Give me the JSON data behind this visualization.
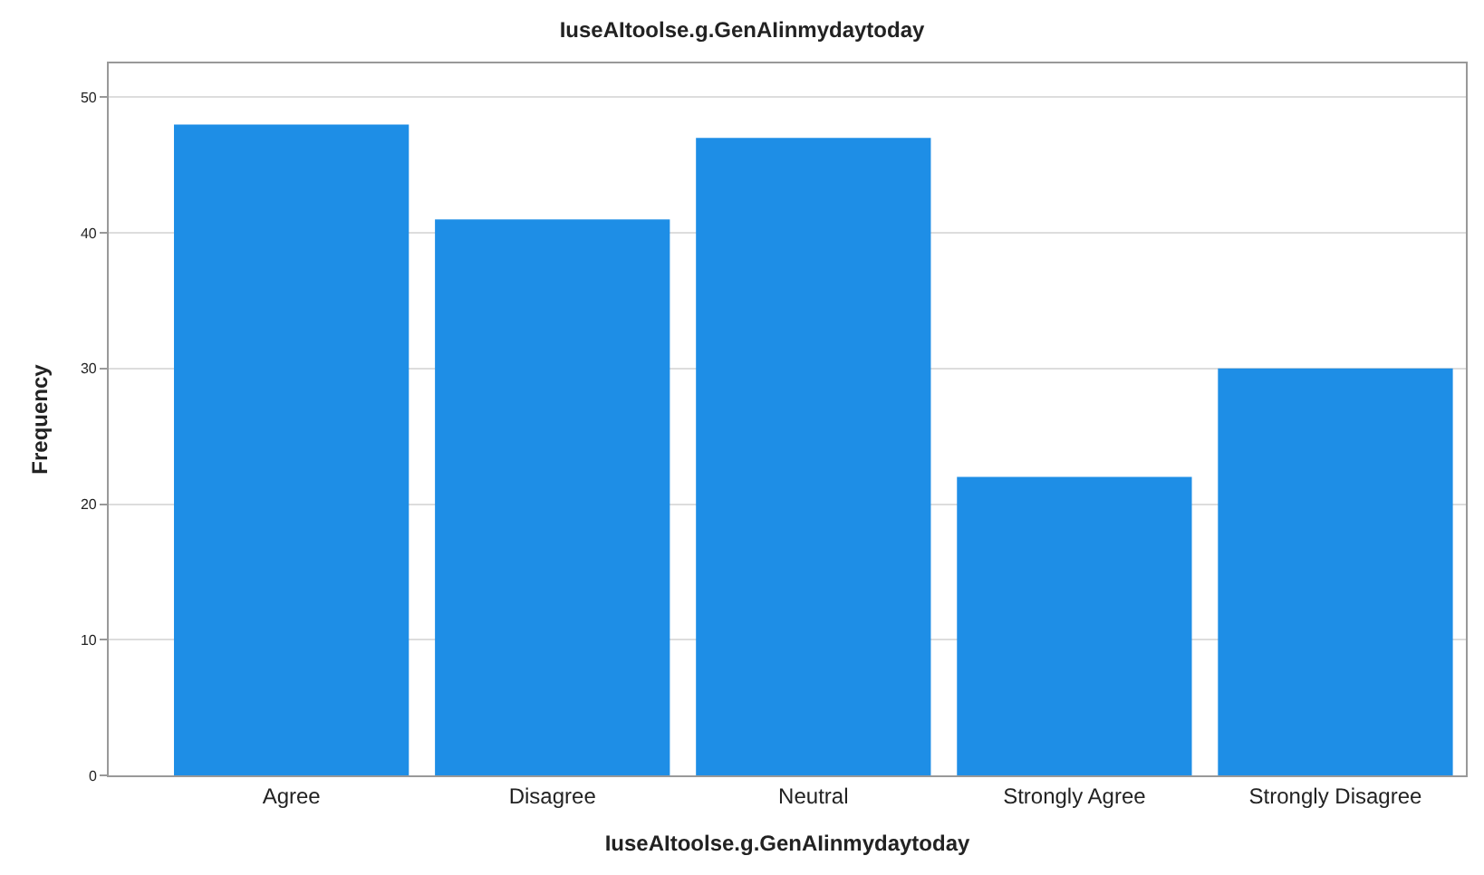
{
  "chart_data": {
    "type": "bar",
    "title": "IuseAItoolse.g.GenAIinmydaytoday",
    "xlabel": "IuseAItoolse.g.GenAIinmydaytoday",
    "ylabel": "Frequency",
    "categories": [
      "Agree",
      "Disagree",
      "Neutral",
      "Strongly Agree",
      "Strongly Disagree"
    ],
    "values": [
      48,
      41,
      47,
      22,
      30
    ],
    "color": "#1e8ee6",
    "ylim": [
      0,
      52.5
    ],
    "yticks": [
      0,
      10,
      20,
      30,
      40,
      50
    ],
    "grid": "y",
    "legend": false
  }
}
